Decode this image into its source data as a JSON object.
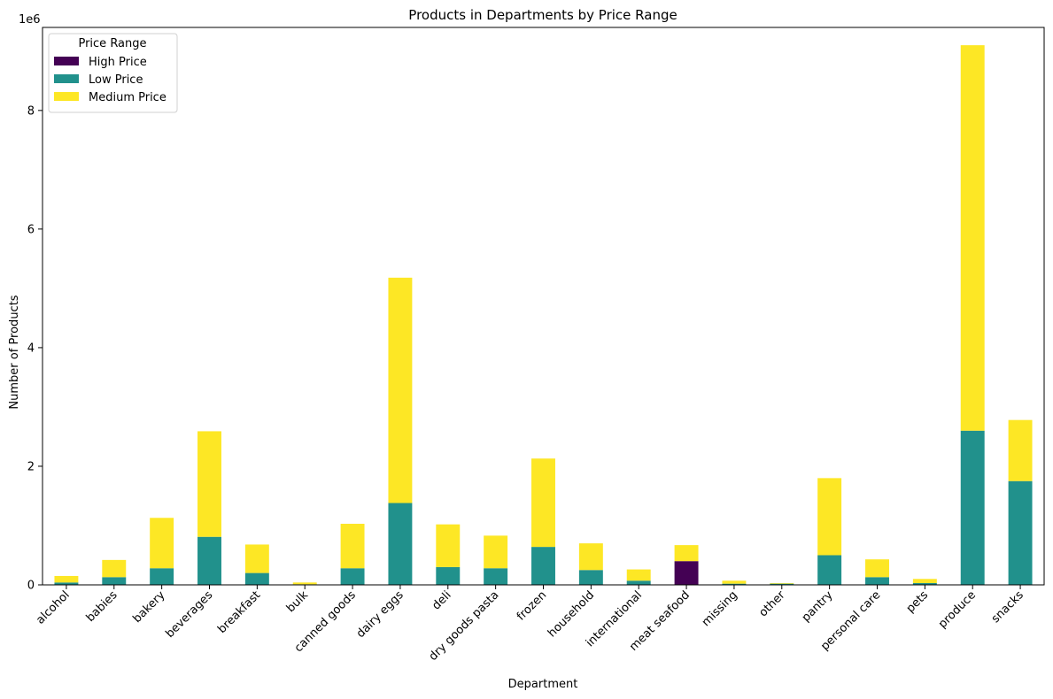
{
  "chart_data": {
    "type": "bar",
    "stacked": true,
    "title": "Products in Departments by Price Range",
    "xlabel": "Department",
    "ylabel": "Number of Products",
    "y_scale_label": "1e6",
    "ylim": [
      0,
      9.4
    ],
    "y_ticks": [
      0,
      2,
      4,
      6,
      8
    ],
    "grid": false,
    "legend": {
      "title": "Price Range",
      "placement": "top-left"
    },
    "categories": [
      "alcohol",
      "babies",
      "bakery",
      "beverages",
      "breakfast",
      "bulk",
      "canned goods",
      "dairy eggs",
      "deli",
      "dry goods pasta",
      "frozen",
      "household",
      "international",
      "meat seafood",
      "missing",
      "other",
      "pantry",
      "personal care",
      "pets",
      "produce",
      "snacks"
    ],
    "series": [
      {
        "name": "High Price",
        "color": "#440154",
        "values": [
          0,
          0,
          0,
          0,
          0,
          0,
          0,
          0,
          0,
          0,
          0,
          0,
          0,
          0.4,
          0,
          0,
          0,
          0,
          0,
          0,
          0
        ]
      },
      {
        "name": "Low Price",
        "color": "#21918c",
        "values": [
          0.04,
          0.13,
          0.28,
          0.81,
          0.2,
          0.01,
          0.28,
          1.38,
          0.3,
          0.28,
          0.64,
          0.25,
          0.07,
          0,
          0.02,
          0.02,
          0.5,
          0.13,
          0.03,
          2.6,
          1.75
        ]
      },
      {
        "name": "Medium Price",
        "color": "#fde725",
        "values": [
          0.11,
          0.29,
          0.85,
          1.78,
          0.48,
          0.03,
          0.75,
          3.8,
          0.72,
          0.55,
          1.49,
          0.45,
          0.19,
          0.27,
          0.05,
          0.01,
          1.3,
          0.3,
          0.07,
          6.5,
          1.03
        ]
      }
    ]
  }
}
